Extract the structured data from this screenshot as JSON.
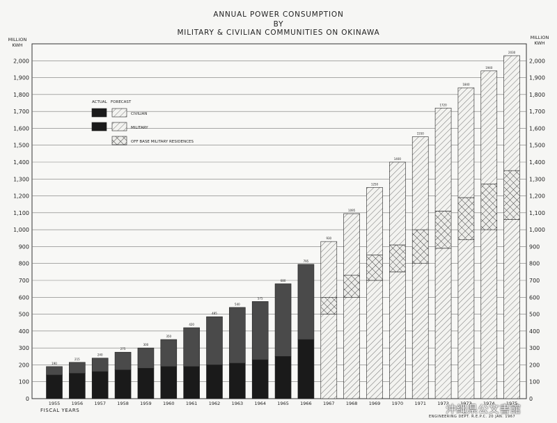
{
  "title_lines": [
    "ANNUAL POWER CONSUMPTION",
    "BY",
    "MILITARY & CIVILIAN COMMUNITIES ON OKINAWA"
  ],
  "unit_label": "MILLION KWH",
  "xlabel": "FISCAL YEARS",
  "credit": "ENGINEERING DEPT. R.E.P.C. 20 JAN. 1967",
  "watermark": "沖縄県公文書館",
  "legend": {
    "col_actual": "ACTUAL",
    "col_forecast": "FORECAST",
    "items": [
      {
        "label": "CIVILIAN",
        "key": "civilian"
      },
      {
        "label": "MILITARY",
        "key": "military"
      },
      {
        "label": "OFF BASE MILITARY RESIDENCES",
        "key": "offbase"
      }
    ]
  },
  "chart_data": {
    "type": "bar",
    "stacked": true,
    "title": "ANNUAL POWER CONSUMPTION BY MILITARY & CIVILIAN COMMUNITIES ON OKINAWA",
    "xlabel": "FISCAL YEARS",
    "ylabel": "MILLION KWH",
    "ylim": [
      0,
      2100
    ],
    "yticks": [
      0,
      100,
      200,
      300,
      400,
      500,
      600,
      700,
      800,
      900,
      1000,
      1100,
      1200,
      1300,
      1400,
      1500,
      1600,
      1700,
      1800,
      1900,
      2000
    ],
    "grid": true,
    "legend_position": "upper-left",
    "categories": [
      "1955",
      "1956",
      "1957",
      "1958",
      "1959",
      "1960",
      "1961",
      "1962",
      "1963",
      "1964",
      "1965",
      "1966",
      "1967",
      "1968",
      "1969",
      "1970",
      "1971",
      "1972",
      "1973",
      "1974",
      "1975"
    ],
    "status": [
      "actual",
      "actual",
      "actual",
      "actual",
      "actual",
      "actual",
      "actual",
      "actual",
      "actual",
      "actual",
      "actual",
      "actual",
      "forecast",
      "forecast",
      "forecast",
      "forecast",
      "forecast",
      "forecast",
      "forecast",
      "forecast",
      "forecast"
    ],
    "series": [
      {
        "name": "MILITARY",
        "key": "military",
        "values": [
          140,
          150,
          160,
          170,
          180,
          190,
          190,
          200,
          210,
          230,
          250,
          350,
          500,
          600,
          700,
          750,
          800,
          890,
          940,
          1000,
          1060
        ]
      },
      {
        "name": "OFF BASE MILITARY RESIDENCES",
        "key": "offbase",
        "values": [
          0,
          0,
          0,
          0,
          0,
          0,
          0,
          0,
          0,
          0,
          0,
          0,
          100,
          130,
          150,
          160,
          200,
          220,
          250,
          270,
          290
        ]
      },
      {
        "name": "CIVILIAN",
        "key": "civilian",
        "values": [
          50,
          65,
          80,
          105,
          120,
          160,
          230,
          285,
          330,
          345,
          430,
          445,
          330,
          365,
          400,
          490,
          550,
          610,
          650,
          670,
          680
        ]
      }
    ],
    "totals": [
      190,
      215,
      240,
      275,
      300,
      350,
      420,
      485,
      540,
      575,
      680,
      795,
      930,
      1095,
      1250,
      1400,
      1550,
      1720,
      1840,
      1940,
      2030
    ]
  }
}
